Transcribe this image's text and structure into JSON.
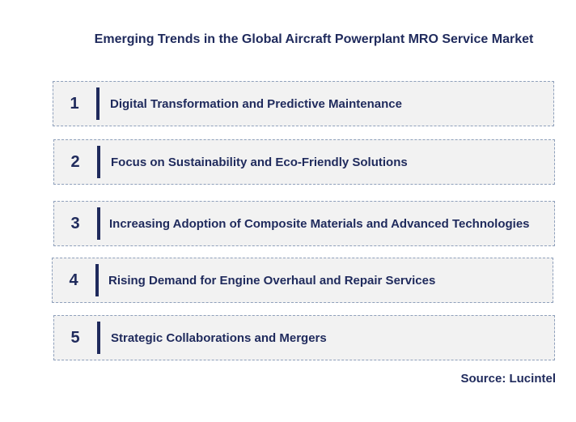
{
  "title": "Emerging Trends in the Global Aircraft Powerplant MRO Service Market",
  "trends": [
    {
      "number": "1",
      "label": "Digital Transformation and Predictive Maintenance"
    },
    {
      "number": "2",
      "label": "Focus on Sustainability and Eco-Friendly Solutions"
    },
    {
      "number": "3",
      "label": "Increasing Adoption of Composite Materials and Advanced Technologies"
    },
    {
      "number": "4",
      "label": "Rising Demand for Engine Overhaul and Repair Services"
    },
    {
      "number": "5",
      "label": "Strategic Collaborations and Mergers"
    }
  ],
  "source": "Source: Lucintel",
  "colors": {
    "text": "#1f2a5c",
    "box_fill": "#f2f2f2",
    "box_border": "#8fa0bb"
  }
}
